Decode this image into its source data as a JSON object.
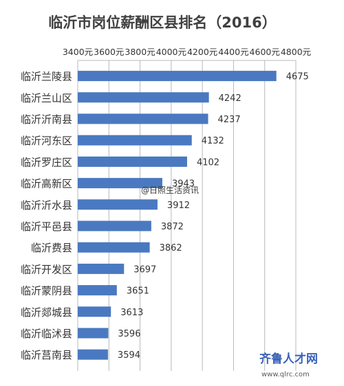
{
  "chart_data": {
    "type": "bar",
    "orientation": "horizontal",
    "title": "临沂市岗位薪酬区县排名（2016）",
    "categories": [
      "临沂兰陵县",
      "临沂兰山区",
      "临沂沂南县",
      "临沂河东区",
      "临沂罗庄区",
      "临沂高新区",
      "临沂沂水县",
      "临沂平邑县",
      "临沂费县",
      "临沂开发区",
      "临沂蒙阴县",
      "临沂郯城县",
      "临沂临沭县",
      "临沂莒南县"
    ],
    "values": [
      4675,
      4242,
      4237,
      4132,
      4102,
      3943,
      3912,
      3872,
      3862,
      3697,
      3651,
      3613,
      3596,
      3594
    ],
    "data_labels": [
      "4675",
      "4242",
      "4237",
      "4132",
      "4102",
      "3943",
      "3912",
      "3872",
      "3862",
      "3697",
      "3651",
      "3613",
      "3596",
      "3594"
    ],
    "xlim": [
      3400,
      4800
    ],
    "ticks": [
      3400,
      3600,
      3800,
      4000,
      4200,
      4400,
      4600,
      4800
    ],
    "tick_labels": [
      "3400元",
      "3600元",
      "3800元",
      "4000元",
      "4200元",
      "4400元",
      "4600元",
      "4800元"
    ],
    "axis_position": "top",
    "grid": true,
    "legend": "none",
    "bar_color": "#4a79c1",
    "watermarks": [
      "@日照生活资讯",
      "齐鲁人才网",
      "www.qlrc.com"
    ]
  }
}
